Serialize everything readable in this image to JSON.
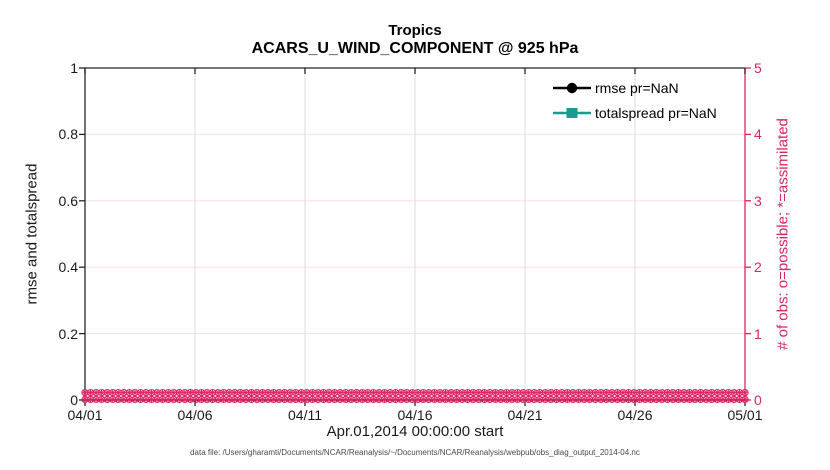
{
  "chart_data": {
    "type": "line",
    "title": "Tropics",
    "subtitle": "ACARS_U_WIND_COMPONENT @ 925 hPa",
    "xlabel": "Apr.01,2014 00:00:00 start",
    "caption": "data file: /Users/gharamti/Documents/NCAR/Reanalysis/~/Documents/NCAR/Reanalysis/webpub/obs_diag_output_2014-04.nc",
    "x_axis": {
      "tick_labels": [
        "04/01",
        "04/06",
        "04/11",
        "04/16",
        "04/21",
        "04/26",
        "05/01"
      ],
      "range_days": [
        0,
        30
      ],
      "tick_positions_days": [
        0,
        5,
        10,
        15,
        20,
        25,
        30
      ]
    },
    "left_y_axis": {
      "label": "rmse and totalspread",
      "ticks": [
        0,
        0.2,
        0.4,
        0.6,
        0.8,
        1
      ],
      "tick_labels": [
        "0",
        "0.2",
        "0.4",
        "0.6",
        "0.8",
        "1"
      ],
      "range": [
        0,
        1
      ]
    },
    "right_y_axis": {
      "label": "# of obs: o=possible; *=assimilated",
      "ticks": [
        0,
        1,
        2,
        3,
        4,
        5
      ],
      "tick_labels": [
        "0",
        "1",
        "2",
        "3",
        "4",
        "5"
      ],
      "range": [
        0,
        5
      ]
    },
    "legend": [
      {
        "label": "rmse pr=NaN",
        "marker": "circle"
      },
      {
        "label": "totalspread pr=NaN",
        "marker": "square"
      }
    ],
    "series": [
      {
        "name": "rmse",
        "value": "NaN",
        "visible_points": 0
      },
      {
        "name": "totalspread",
        "value": "NaN",
        "visible_points": 0
      },
      {
        "name": "obs_possible",
        "marker": "o",
        "constant_value": 0,
        "n_points": 120
      },
      {
        "name": "obs_assimilated",
        "marker": "*",
        "constant_value": 0,
        "n_points": 120
      }
    ],
    "grid": true,
    "legend_position": "top-right-inside",
    "colors": {
      "obs_axis_pink": "#de2264",
      "totalspread_teal": "#1a9a90",
      "rmse_black": "#000000",
      "axis_dark": "#262626",
      "grid_gray": "#dcdcdc",
      "grid_pink": "#f8dde8"
    }
  }
}
